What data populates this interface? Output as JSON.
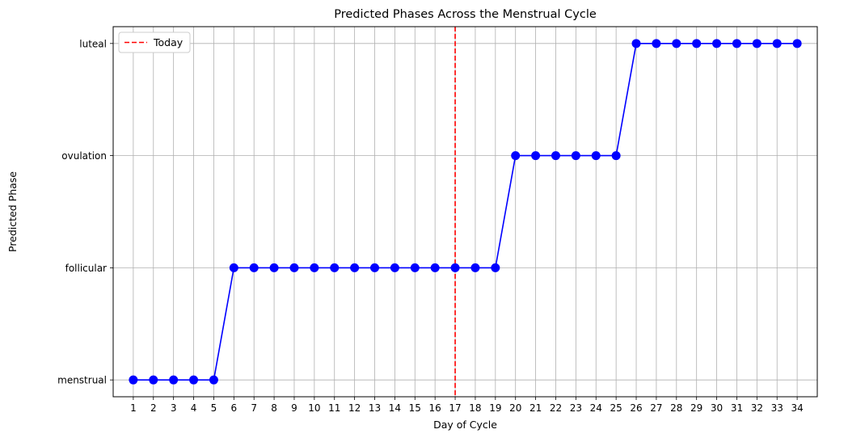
{
  "chart_data": {
    "type": "line",
    "title": "Predicted Phases Across the Menstrual Cycle",
    "xlabel": "Day of Cycle",
    "ylabel": "Predicted Phase",
    "x": [
      1,
      2,
      3,
      4,
      5,
      6,
      7,
      8,
      9,
      10,
      11,
      12,
      13,
      14,
      15,
      16,
      17,
      18,
      19,
      20,
      21,
      22,
      23,
      24,
      25,
      26,
      27,
      28,
      29,
      30,
      31,
      32,
      33,
      34
    ],
    "y_categories": [
      "menstrual",
      "follicular",
      "ovulation",
      "luteal"
    ],
    "series": [
      {
        "color": "#0000ff",
        "values": [
          "menstrual",
          "menstrual",
          "menstrual",
          "menstrual",
          "menstrual",
          "follicular",
          "follicular",
          "follicular",
          "follicular",
          "follicular",
          "follicular",
          "follicular",
          "follicular",
          "follicular",
          "follicular",
          "follicular",
          "follicular",
          "follicular",
          "follicular",
          "ovulation",
          "ovulation",
          "ovulation",
          "ovulation",
          "ovulation",
          "ovulation",
          "luteal",
          "luteal",
          "luteal",
          "luteal",
          "luteal",
          "luteal",
          "luteal",
          "luteal",
          "luteal"
        ]
      }
    ],
    "reference_line": {
      "x": 17,
      "label": "Today",
      "color": "#ff0000",
      "style": "dashed"
    },
    "xlim": [
      0,
      35
    ],
    "grid": true,
    "legend": {
      "position": "top-left",
      "entries": [
        "Today"
      ]
    }
  }
}
